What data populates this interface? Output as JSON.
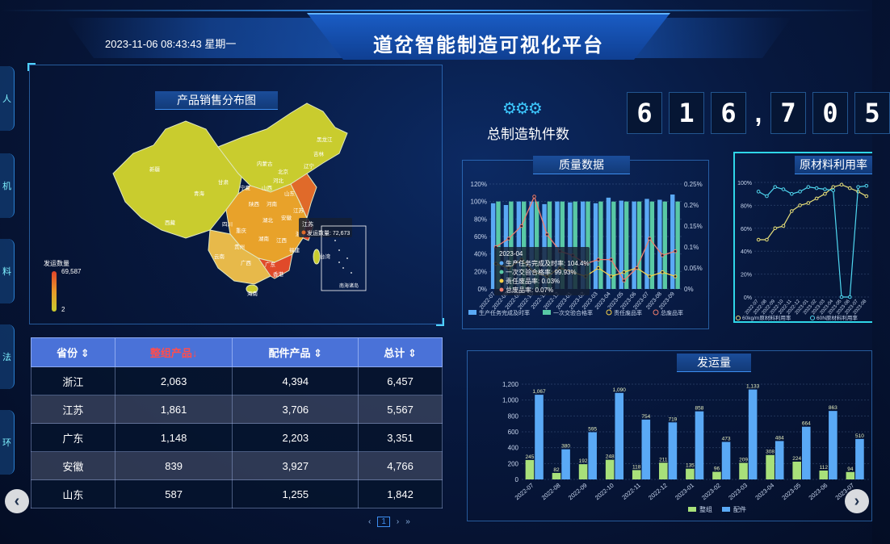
{
  "header": {
    "datetime": "2023-11-06 08:43:43 星期一",
    "title": "道岔智能制造可视化平台"
  },
  "side_tabs": [
    "人",
    "机",
    "料",
    "法",
    "环"
  ],
  "map": {
    "title": "产品销售分布图",
    "legend_title": "发运数量",
    "legend_max": "69,587",
    "legend_min": "2",
    "tooltip_name": "江苏",
    "tooltip_value": "发运数量: 72,673",
    "inset_label": "南海诸岛",
    "provinces": [
      "新疆",
      "西藏",
      "青海",
      "甘肃",
      "内蒙古",
      "黑龙江",
      "吉林",
      "辽宁",
      "北京",
      "河北",
      "山西",
      "宁夏",
      "陕西",
      "山东",
      "河南",
      "四川",
      "重庆",
      "湖北",
      "安徽",
      "江苏",
      "上海",
      "浙江",
      "贵州",
      "湖南",
      "江西",
      "福建",
      "云南",
      "广西",
      "广东",
      "海南",
      "台湾",
      "香港"
    ],
    "colors": {
      "high": "#e0442a",
      "mid": "#e89a2a",
      "low": "#c9cc2e"
    }
  },
  "table": {
    "headers": [
      "省份",
      "整组产品",
      "配件产品",
      "总计"
    ],
    "sort_icon": "sort-icon",
    "active_sort_icon": "sort-desc-icon",
    "rows": [
      [
        "浙江",
        "2,063",
        "4,394",
        "6,457"
      ],
      [
        "江苏",
        "1,861",
        "3,706",
        "5,567"
      ],
      [
        "广东",
        "1,148",
        "2,203",
        "3,351"
      ],
      [
        "安徽",
        "839",
        "3,927",
        "4,766"
      ],
      [
        "山东",
        "587",
        "1,255",
        "1,842"
      ]
    ],
    "pager_current": "1"
  },
  "counter": {
    "label": "总制造轨件数",
    "digits": [
      "6",
      "1",
      "6",
      ",",
      "7",
      "0",
      "5"
    ],
    "icon": "gears-icon"
  },
  "quality": {
    "title": "质量数据",
    "tooltip": {
      "date": "2023-04",
      "lines": [
        "生产任务完成及时率: 104.4%",
        "一次交验合格率: 99.93%",
        "责任废品率: 0.03%",
        "总废品率: 0.07%"
      ]
    },
    "legend": [
      "生产任务完成及时率",
      "一次交验合格率",
      "责任废品率",
      "总废品率"
    ]
  },
  "material": {
    "title": "原材料利用率",
    "legend": [
      "60kg/m原材料利用率",
      "60N原材料利用率"
    ]
  },
  "shipment": {
    "title": "发运量",
    "legend": [
      "整组",
      "配件"
    ]
  },
  "chart_data": [
    {
      "type": "bar",
      "title": "发运量",
      "categories": [
        "2022-07",
        "2022-08",
        "2022-09",
        "2022-10",
        "2022-11",
        "2022-12",
        "2023-01",
        "2023-02",
        "2023-03",
        "2023-04",
        "2023-05",
        "2023-06",
        "2023-07"
      ],
      "series": [
        {
          "name": "整组",
          "values": [
            245,
            82,
            192,
            248,
            118,
            211,
            135,
            96,
            209,
            308,
            224,
            112,
            94
          ]
        },
        {
          "name": "配件",
          "values": [
            1067,
            380,
            595,
            1090,
            754,
            719,
            858,
            473,
            1133,
            484,
            664,
            863,
            510
          ]
        }
      ],
      "y_ticks": [
        "0",
        "200",
        "400",
        "600",
        "800",
        "1,000",
        "1,200"
      ],
      "ylim": [
        0,
        1200
      ],
      "colors": {
        "整组": "#a8e07a",
        "配件": "#5aa9f5"
      },
      "legend_position": "bottom"
    },
    {
      "type": "bar",
      "title": "质量数据",
      "categories": [
        "2022-07",
        "2022-08",
        "2022-09",
        "2022-10",
        "2022-11",
        "2022-12",
        "2023-01",
        "2023-02",
        "2023-03",
        "2023-04",
        "2023-05",
        "2023-06",
        "2023-07",
        "2023-08",
        "2023-09"
      ],
      "series": [
        {
          "name": "生产任务完成及时率",
          "values": [
            98,
            96,
            100,
            100,
            97,
            100,
            99,
            100,
            98,
            104.4,
            101,
            100,
            103,
            102,
            108
          ]
        },
        {
          "name": "一次交验合格率",
          "values": [
            100,
            100,
            100,
            100,
            100,
            100,
            100,
            100,
            100,
            99.93,
            100,
            100,
            100,
            100,
            100
          ]
        },
        {
          "name": "责任废品率",
          "values": [
            0.06,
            0.05,
            0.07,
            0.04,
            0.03,
            0.05,
            0.04,
            0.03,
            0.05,
            0.03,
            0.04,
            0.05,
            0.03,
            0.04,
            0.03
          ]
        },
        {
          "name": "总废品率",
          "values": [
            0.1,
            0.12,
            0.15,
            0.22,
            0.13,
            0.09,
            0.08,
            0.06,
            0.07,
            0.07,
            0.02,
            0.05,
            0.12,
            0.08,
            0.09
          ]
        }
      ],
      "y_ticks_left": [
        "0%",
        "20%",
        "40%",
        "60%",
        "80%",
        "100%",
        "120%"
      ],
      "y_ticks_right": [
        "0%",
        "0.05%",
        "0.1%",
        "0.15%",
        "0.2%",
        "0.25%"
      ],
      "ylim_left": [
        0,
        120
      ],
      "ylim_right": [
        0,
        0.25
      ],
      "colors": {
        "生产任务完成及时率": "#5aa9f5",
        "一次交验合格率": "#59c9a5",
        "责任废品率": "#f5d04a",
        "总废品率": "#ef7e6e"
      },
      "legend_position": "bottom"
    },
    {
      "type": "line",
      "title": "原材料利用率",
      "categories": [
        "2022-07",
        "2022-08",
        "2022-09",
        "2022-10",
        "2022-11",
        "2022-12",
        "2023-01",
        "2023-02",
        "2023-03",
        "2023-04",
        "2023-05",
        "2023-06",
        "2023-07",
        "2023-08"
      ],
      "series": [
        {
          "name": "60kg/m原材料利用率",
          "values": [
            50,
            50,
            60,
            62,
            75,
            80,
            82,
            86,
            90,
            96,
            98,
            95,
            92,
            88
          ]
        },
        {
          "name": "60N原材料利用率",
          "values": [
            92,
            88,
            96,
            94,
            90,
            92,
            96,
            95,
            94,
            93,
            0,
            0,
            96,
            97
          ]
        }
      ],
      "y_ticks": [
        "0%",
        "20%",
        "40%",
        "60%",
        "80%",
        "100%"
      ],
      "ylim": [
        0,
        100
      ],
      "colors": {
        "60kg/m原材料利用率": "#e8e07a",
        "60N原材料利用率": "#4fd7f0"
      },
      "legend_position": "bottom"
    }
  ]
}
